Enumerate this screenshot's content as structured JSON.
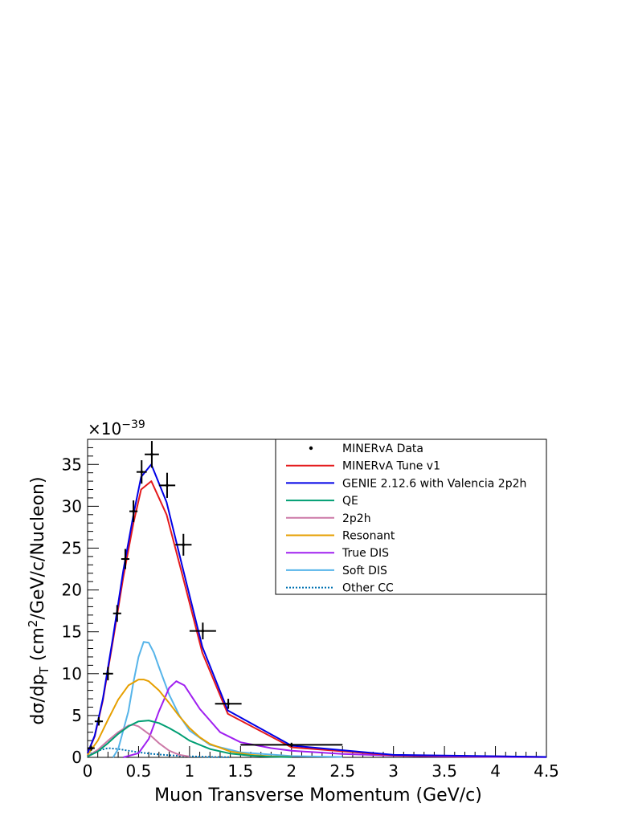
{
  "chart_data": {
    "type": "line",
    "title": "",
    "xlabel": "Muon Transverse Momentum (GeV/c)",
    "ylabel_main": "dσ/dp",
    "ylabel_sub": "T",
    "ylabel_rest1": " (cm",
    "ylabel_sup": "2",
    "ylabel_rest2": "/GeV/c/Nucleon)",
    "exponent_base": "×10",
    "exponent_power": "−39",
    "xlim": [
      0,
      4.5
    ],
    "ylim": [
      0,
      38
    ],
    "xticks": [
      0,
      0.5,
      1,
      1.5,
      2,
      2.5,
      3,
      3.5,
      4,
      4.5
    ],
    "xtick_labels": [
      "0",
      "0.5",
      "1",
      "1.5",
      "2",
      "2.5",
      "3",
      "3.5",
      "4",
      "4.5"
    ],
    "yticks": [
      0,
      5,
      10,
      15,
      20,
      25,
      30,
      35
    ],
    "ytick_labels": [
      "0",
      "5",
      "10",
      "15",
      "20",
      "25",
      "30",
      "35"
    ],
    "legend_position": "top-right",
    "data_points": {
      "name": "MINERvA Data",
      "color": "#000000",
      "points": [
        {
          "x": 0.035,
          "xerr": 0.035,
          "y": 1.1,
          "yerr": 0.3
        },
        {
          "x": 0.11,
          "xerr": 0.04,
          "y": 4.3,
          "yerr": 0.5
        },
        {
          "x": 0.2,
          "xerr": 0.05,
          "y": 10.0,
          "yerr": 0.8
        },
        {
          "x": 0.29,
          "xerr": 0.04,
          "y": 17.2,
          "yerr": 1.0
        },
        {
          "x": 0.37,
          "xerr": 0.04,
          "y": 23.7,
          "yerr": 1.2
        },
        {
          "x": 0.45,
          "xerr": 0.04,
          "y": 29.4,
          "yerr": 1.3
        },
        {
          "x": 0.53,
          "xerr": 0.05,
          "y": 34.1,
          "yerr": 1.4
        },
        {
          "x": 0.63,
          "xerr": 0.07,
          "y": 36.2,
          "yerr": 1.6
        },
        {
          "x": 0.78,
          "xerr": 0.08,
          "y": 32.5,
          "yerr": 1.5
        },
        {
          "x": 0.94,
          "xerr": 0.08,
          "y": 25.4,
          "yerr": 1.3
        },
        {
          "x": 1.13,
          "xerr": 0.13,
          "y": 15.1,
          "yerr": 1.0
        },
        {
          "x": 1.38,
          "xerr": 0.13,
          "y": 6.4,
          "yerr": 0.6
        },
        {
          "x": 2.0,
          "xerr": 0.5,
          "y": 1.5,
          "yerr": 0.25
        }
      ]
    },
    "series": [
      {
        "name": "MINERvA Tune v1",
        "color": "#e41a1c",
        "dash": "solid",
        "x": [
          0,
          0.07,
          0.15,
          0.25,
          0.35,
          0.45,
          0.525,
          0.625,
          0.775,
          0.925,
          1.125,
          1.375,
          2.0,
          3.0,
          4.5
        ],
        "y": [
          0.5,
          2.5,
          6.8,
          14.0,
          21.5,
          28.0,
          32.0,
          33.0,
          29.0,
          22.0,
          12.5,
          5.2,
          1.2,
          0.25,
          0.05
        ]
      },
      {
        "name": "GENIE 2.12.6 with Valencia 2p2h",
        "color": "#0000e6",
        "dash": "solid",
        "x": [
          0,
          0.07,
          0.15,
          0.25,
          0.35,
          0.45,
          0.525,
          0.625,
          0.775,
          0.925,
          1.125,
          1.375,
          2.0,
          3.0,
          4.5
        ],
        "y": [
          0.5,
          2.6,
          7.0,
          14.4,
          22.3,
          29.0,
          33.5,
          35.0,
          30.5,
          23.0,
          13.2,
          5.6,
          1.4,
          0.3,
          0.05
        ]
      },
      {
        "name": "QE",
        "color": "#009E73",
        "dash": "solid",
        "x": [
          0,
          0.1,
          0.2,
          0.3,
          0.4,
          0.5,
          0.6,
          0.7,
          0.8,
          0.9,
          1.0,
          1.2,
          1.4,
          1.6,
          1.8,
          2.0
        ],
        "y": [
          0.1,
          0.7,
          1.7,
          2.8,
          3.7,
          4.3,
          4.4,
          4.1,
          3.5,
          2.8,
          2.0,
          1.0,
          0.45,
          0.2,
          0.08,
          0.03
        ]
      },
      {
        "name": "2p2h",
        "color": "#cc79a7",
        "dash": "solid",
        "x": [
          0,
          0.1,
          0.2,
          0.3,
          0.4,
          0.45,
          0.5,
          0.6,
          0.7,
          0.8,
          0.9,
          1.0
        ],
        "y": [
          0.1,
          0.9,
          2.0,
          3.0,
          3.8,
          3.9,
          3.7,
          2.8,
          1.7,
          0.8,
          0.3,
          0.1
        ]
      },
      {
        "name": "Resonant",
        "color": "#e69f00",
        "dash": "solid",
        "x": [
          0,
          0.1,
          0.2,
          0.3,
          0.4,
          0.5,
          0.55,
          0.6,
          0.7,
          0.8,
          0.9,
          1.0,
          1.1,
          1.2,
          1.4,
          1.6,
          1.8,
          2.0
        ],
        "y": [
          0.3,
          2.0,
          4.5,
          6.9,
          8.6,
          9.3,
          9.3,
          9.1,
          8.0,
          6.5,
          4.9,
          3.5,
          2.4,
          1.6,
          0.7,
          0.3,
          0.12,
          0.05
        ]
      },
      {
        "name": "True DIS",
        "color": "#a020f0",
        "dash": "solid",
        "x": [
          0.35,
          0.5,
          0.6,
          0.7,
          0.8,
          0.87,
          0.95,
          1.1,
          1.3,
          1.5,
          1.8,
          2.0,
          2.5,
          3.0,
          3.5,
          4.0,
          4.5
        ],
        "y": [
          0.0,
          0.5,
          2.2,
          5.5,
          8.3,
          9.1,
          8.6,
          5.8,
          3.0,
          1.8,
          1.1,
          0.8,
          0.4,
          0.2,
          0.1,
          0.05,
          0.02
        ]
      },
      {
        "name": "Soft DIS",
        "color": "#56b4e9",
        "dash": "solid",
        "x": [
          0.25,
          0.3,
          0.4,
          0.45,
          0.5,
          0.55,
          0.6,
          0.65,
          0.7,
          0.8,
          0.9,
          1.0,
          1.2,
          1.5,
          2.0,
          2.5
        ],
        "y": [
          0.0,
          1.0,
          5.5,
          9.0,
          12.0,
          13.8,
          13.7,
          12.5,
          10.8,
          7.5,
          5.0,
          3.2,
          1.5,
          0.6,
          0.15,
          0.05
        ]
      },
      {
        "name": "Other CC",
        "color": "#0072b2",
        "dash": "dotted",
        "x": [
          0,
          0.1,
          0.2,
          0.3,
          0.4,
          0.5,
          0.6,
          0.8,
          1.0,
          1.2,
          1.4
        ],
        "y": [
          0.3,
          0.8,
          1.1,
          1.0,
          0.8,
          0.6,
          0.45,
          0.25,
          0.12,
          0.05,
          0.02
        ]
      }
    ]
  }
}
